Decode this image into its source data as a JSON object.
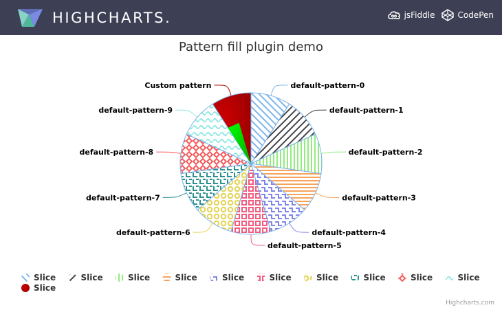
{
  "header": {
    "brand": "HIGHCHARTS.",
    "links": [
      {
        "label": "jsFiddle",
        "icon": "cloud-icon"
      },
      {
        "label": "CodePen",
        "icon": "cube-icon"
      }
    ]
  },
  "chart_data": {
    "type": "pie",
    "title": "Pattern fill plugin demo",
    "slices": [
      {
        "name": "default-pattern-0",
        "value": 1,
        "pattern": "diagonal-ltr",
        "color": "#7cb5ec",
        "legend_label": "Slice"
      },
      {
        "name": "default-pattern-1",
        "value": 1,
        "pattern": "diagonal-rtl",
        "color": "#434348",
        "legend_label": "Slice"
      },
      {
        "name": "default-pattern-2",
        "value": 1,
        "pattern": "vertical",
        "color": "#90ed7d",
        "legend_label": "Slice"
      },
      {
        "name": "default-pattern-3",
        "value": 1,
        "pattern": "horizontal",
        "color": "#f7a35c",
        "legend_label": "Slice"
      },
      {
        "name": "default-pattern-4",
        "value": 1,
        "pattern": "zigzag",
        "color": "#8085e9",
        "legend_label": "Slice"
      },
      {
        "name": "default-pattern-5",
        "value": 1,
        "pattern": "squares",
        "color": "#f15c80",
        "legend_label": "Slice"
      },
      {
        "name": "default-pattern-6",
        "value": 1,
        "pattern": "circles",
        "color": "#e4d354",
        "legend_label": "Slice"
      },
      {
        "name": "default-pattern-7",
        "value": 1,
        "pattern": "steps",
        "color": "#2b908f",
        "legend_label": "Slice"
      },
      {
        "name": "default-pattern-8",
        "value": 1,
        "pattern": "diamonds",
        "color": "#f45b5b",
        "legend_label": "Slice"
      },
      {
        "name": "default-pattern-9",
        "value": 1,
        "pattern": "waves",
        "color": "#91e8e1",
        "legend_label": "Slice"
      },
      {
        "name": "Custom pattern",
        "value": 1,
        "pattern": "custom",
        "color": "#aa0000",
        "legend_label": "Slice"
      }
    ],
    "legend_placement": "bottom-center"
  },
  "credits": "Highcharts.com"
}
